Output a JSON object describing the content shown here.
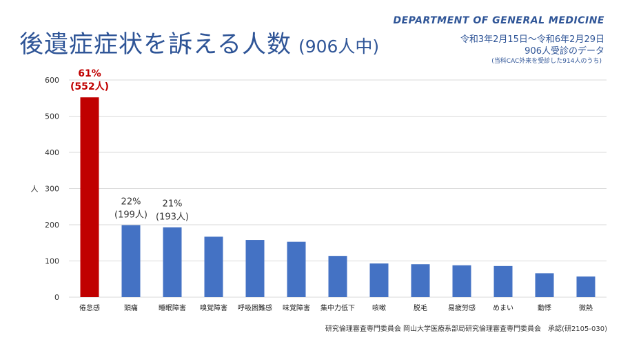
{
  "header": {
    "title_main": "後遺症症状を訴える人数",
    "title_sub": "(906人中)",
    "department": "DEPARTMENT OF GENERAL MEDICINE",
    "period": "令和3年2月15日～令和6年2月29日",
    "subjects": "906人受診のデータ",
    "note": "(当科CAC外来を受診した914人のうち)"
  },
  "footer": {
    "ethics": "研究倫理審査専門委員会 岡山大学医療系部局研究倫理審査専門委員会　承認(研2105-030)"
  },
  "colors": {
    "highlight": "#c00000",
    "bar": "#4472c4",
    "title": "#2f5597",
    "grid": "#d9d9d9"
  },
  "chart_data": {
    "type": "bar",
    "ylabel": "人",
    "ylim": [
      0,
      600
    ],
    "yticks": [
      0,
      100,
      200,
      300,
      400,
      500,
      600
    ],
    "grid": true,
    "categories": [
      "倦怠感",
      "頭痛",
      "睡眠障害",
      "嗅覚障害",
      "呼吸困難感",
      "味覚障害",
      "集中力低下",
      "咳嗽",
      "脱毛",
      "易疲労感",
      "めまい",
      "動悸",
      "微熱"
    ],
    "values": [
      552,
      199,
      193,
      167,
      158,
      153,
      114,
      93,
      91,
      88,
      86,
      66,
      57
    ],
    "highlight_index": 0,
    "annotations": [
      {
        "index": 0,
        "percent": "61%",
        "count": "(552人)"
      },
      {
        "index": 1,
        "percent": "22%",
        "count": "(199人)"
      },
      {
        "index": 2,
        "percent": "21%",
        "count": "(193人)"
      }
    ]
  }
}
